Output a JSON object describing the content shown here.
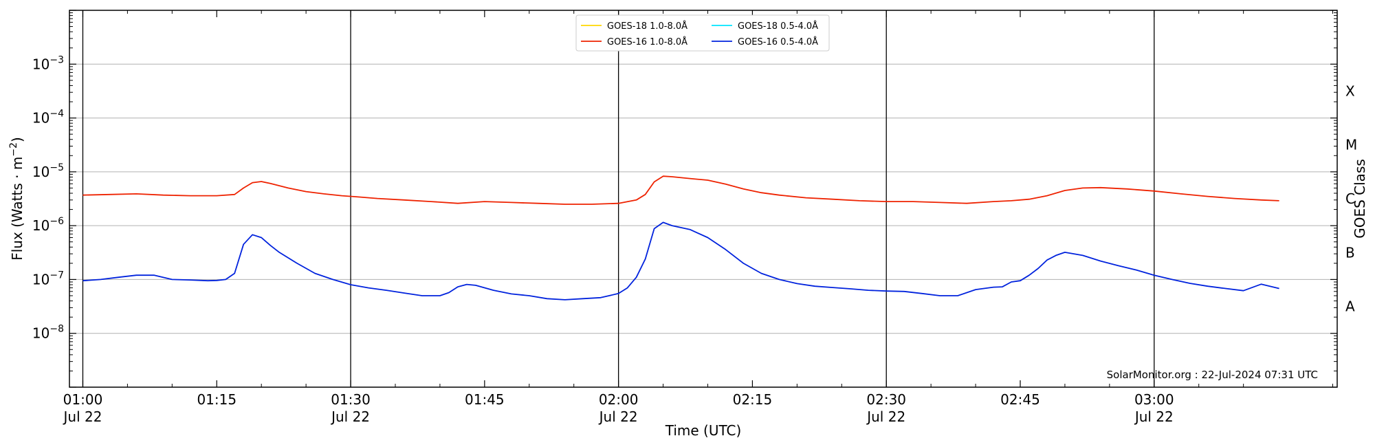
{
  "chart_data": {
    "type": "line",
    "xlabel": "Time (UTC)",
    "ylabel": "Flux (Watts · m",
    "ylabel_sup": "−2",
    "ylabel_end": ")",
    "y2label": "GOES Class",
    "yscale": "log",
    "ylim": [
      1e-09,
      0.01
    ],
    "xlim_minutes_from_0100": [
      -1.5,
      108.5
    ],
    "x_ticks": [
      {
        "minutes": 0,
        "label": "01:00",
        "date": "Jul 22"
      },
      {
        "minutes": 15,
        "label": "01:15",
        "date": ""
      },
      {
        "minutes": 30,
        "label": "01:30",
        "date": "Jul 22"
      },
      {
        "minutes": 45,
        "label": "01:45",
        "date": ""
      },
      {
        "minutes": 60,
        "label": "02:00",
        "date": "Jul 22"
      },
      {
        "minutes": 75,
        "label": "02:15",
        "date": ""
      },
      {
        "minutes": 90,
        "label": "02:30",
        "date": "Jul 22"
      },
      {
        "minutes": 105,
        "label": "02:45",
        "date": ""
      },
      {
        "minutes": 120,
        "label": "03:00",
        "date": "Jul 22"
      }
    ],
    "y_ticks": [
      {
        "exp": -8,
        "label": "10",
        "sup": "−8"
      },
      {
        "exp": -7,
        "label": "10",
        "sup": "−7"
      },
      {
        "exp": -6,
        "label": "10",
        "sup": "−6"
      },
      {
        "exp": -5,
        "label": "10",
        "sup": "−5"
      },
      {
        "exp": -4,
        "label": "10",
        "sup": "−4"
      },
      {
        "exp": -3,
        "label": "10",
        "sup": "−3"
      }
    ],
    "goes_classes": [
      "A",
      "B",
      "C",
      "M",
      "X"
    ],
    "grid": true,
    "legend_position": "top-center",
    "credit": "SolarMonitor.org : 22-Jul-2024 07:31 UTC",
    "series": [
      {
        "name": "GOES-18 1.0-8.0Å",
        "color": "#ffd700",
        "x": [],
        "y": []
      },
      {
        "name": "GOES-18 0.5-4.0Å",
        "color": "#00e5ff",
        "x": [],
        "y": []
      },
      {
        "name": "GOES-16 1.0-8.0Å",
        "color": "#ee2200",
        "x": [
          0,
          3,
          6,
          9,
          12,
          15,
          17,
          18,
          19,
          20,
          21,
          23,
          25,
          27,
          29,
          31,
          33,
          36,
          39,
          42,
          45,
          48,
          51,
          54,
          57,
          60,
          62,
          63,
          64,
          65,
          66,
          68,
          70,
          72,
          74,
          76,
          78,
          81,
          84,
          87,
          90,
          93,
          96,
          99,
          102,
          104,
          106,
          108,
          110,
          112,
          114,
          117,
          120,
          123,
          126,
          129,
          132,
          134
        ],
        "y": [
          3.7e-06,
          3.8e-06,
          3.9e-06,
          3.7e-06,
          3.6e-06,
          3.6e-06,
          3.8e-06,
          5e-06,
          6.3e-06,
          6.6e-06,
          6.1e-06,
          5e-06,
          4.3e-06,
          3.9e-06,
          3.6e-06,
          3.4e-06,
          3.2e-06,
          3e-06,
          2.8e-06,
          2.6e-06,
          2.8e-06,
          2.7e-06,
          2.6e-06,
          2.5e-06,
          2.5e-06,
          2.6e-06,
          3e-06,
          3.8e-06,
          6.5e-06,
          8.3e-06,
          8.1e-06,
          7.5e-06,
          7e-06,
          5.9e-06,
          4.8e-06,
          4.1e-06,
          3.7e-06,
          3.3e-06,
          3.1e-06,
          2.9e-06,
          2.8e-06,
          2.8e-06,
          2.7e-06,
          2.6e-06,
          2.8e-06,
          2.9e-06,
          3.1e-06,
          3.6e-06,
          4.5e-06,
          5e-06,
          5.1e-06,
          4.8e-06,
          4.4e-06,
          3.9e-06,
          3.5e-06,
          3.2e-06,
          3e-06,
          2.9e-06
        ]
      },
      {
        "name": "GOES-16 0.5-4.0Å",
        "color": "#0022dd",
        "x": [
          0,
          2,
          4,
          6,
          8,
          10,
          12,
          14,
          15,
          16,
          17,
          18,
          19,
          20,
          21,
          22,
          24,
          26,
          28,
          30,
          32,
          34,
          36,
          38,
          40,
          41,
          42,
          43,
          44,
          46,
          48,
          50,
          52,
          54,
          56,
          58,
          60,
          61,
          62,
          63,
          64,
          65,
          66,
          68,
          70,
          72,
          74,
          76,
          78,
          80,
          82,
          84,
          86,
          88,
          90,
          92,
          94,
          96,
          98,
          100,
          102,
          103,
          104,
          105,
          106,
          107,
          108,
          109,
          110,
          112,
          114,
          116,
          118,
          120,
          122,
          124,
          126,
          128,
          130,
          132,
          134
        ],
        "y": [
          9.5e-08,
          1e-07,
          1.1e-07,
          1.2e-07,
          1.2e-07,
          1e-07,
          9.8e-08,
          9.5e-08,
          9.6e-08,
          1e-07,
          1.3e-07,
          4.5e-07,
          6.8e-07,
          6e-07,
          4.3e-07,
          3.2e-07,
          2e-07,
          1.3e-07,
          1e-07,
          8e-08,
          7e-08,
          6.3e-08,
          5.6e-08,
          5e-08,
          5e-08,
          5.7e-08,
          7.3e-08,
          8.1e-08,
          7.8e-08,
          6.3e-08,
          5.4e-08,
          5e-08,
          4.4e-08,
          4.2e-08,
          4.4e-08,
          4.6e-08,
          5.5e-08,
          7e-08,
          1.1e-07,
          2.4e-07,
          8.8e-07,
          1.15e-06,
          1e-06,
          8.5e-07,
          6e-07,
          3.6e-07,
          2e-07,
          1.3e-07,
          1e-07,
          8.4e-08,
          7.5e-08,
          7.1e-08,
          6.7e-08,
          6.3e-08,
          6.1e-08,
          6e-08,
          5.5e-08,
          5e-08,
          5e-08,
          6.5e-08,
          7.2e-08,
          7.3e-08,
          9e-08,
          9.5e-08,
          1.2e-07,
          1.6e-07,
          2.3e-07,
          2.8e-07,
          3.2e-07,
          2.8e-07,
          2.2e-07,
          1.8e-07,
          1.5e-07,
          1.2e-07,
          1e-07,
          8.5e-08,
          7.5e-08,
          6.8e-08,
          6.2e-08,
          8.2e-08,
          6.8e-08
        ]
      }
    ]
  }
}
